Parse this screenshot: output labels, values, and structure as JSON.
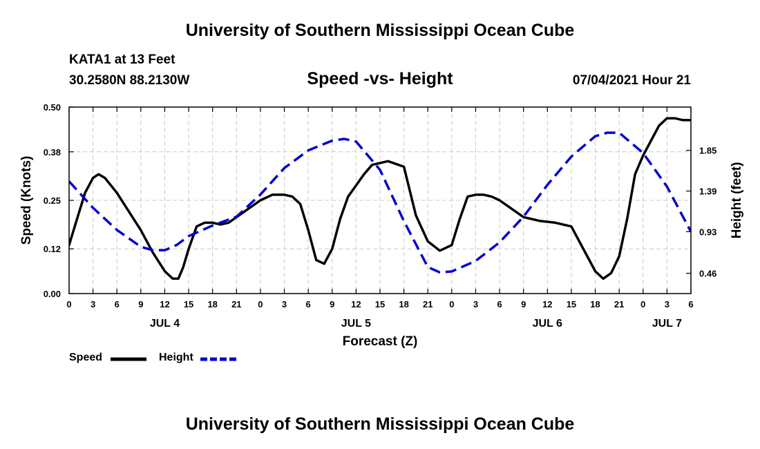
{
  "header": {
    "title_top": "University of Southern Mississippi Ocean Cube",
    "title_bottom": "University of Southern Mississippi Ocean Cube",
    "station": "KATA1 at 13 Feet",
    "coords": "30.2580N  88.2130W",
    "chart_title": "Speed -vs- Height",
    "datetime": "07/04/2021 Hour 21"
  },
  "legend": {
    "speed": "Speed",
    "height": "Height"
  },
  "chart_data": {
    "type": "line",
    "title": "Speed -vs- Height",
    "xlabel": "Forecast (Z)",
    "ylabel": "Speed (Knots)",
    "y2label": "Height (feet)",
    "xlim": [
      0,
      78
    ],
    "ylim": [
      0,
      0.5
    ],
    "y2lim": [
      0.23,
      2.34
    ],
    "grid": true,
    "legend_position": "bottom-left",
    "x_ticks": [
      0,
      3,
      6,
      9,
      12,
      15,
      18,
      21,
      24,
      27,
      30,
      33,
      36,
      39,
      42,
      45,
      48,
      51,
      54,
      57,
      60,
      63,
      66,
      69,
      72,
      75,
      78
    ],
    "x_tick_labels": [
      "0",
      "3",
      "6",
      "9",
      "12",
      "15",
      "18",
      "21",
      "0",
      "3",
      "6",
      "9",
      "12",
      "15",
      "18",
      "21",
      "0",
      "3",
      "6",
      "9",
      "12",
      "15",
      "18",
      "21",
      "0",
      "3",
      "6"
    ],
    "day_labels": [
      {
        "x": 12,
        "label": "JUL 4"
      },
      {
        "x": 36,
        "label": "JUL 5"
      },
      {
        "x": 60,
        "label": "JUL 6"
      },
      {
        "x": 75,
        "label": "JUL 7"
      }
    ],
    "y_ticks": [
      0.0,
      0.12,
      0.25,
      0.38,
      0.5
    ],
    "y_tick_labels": [
      "0.00",
      "0.12",
      "0.25",
      "0.38",
      "0.50"
    ],
    "y2_ticks": [
      0.46,
      0.93,
      1.39,
      1.85
    ],
    "y2_tick_labels": [
      "0.46",
      "0.93",
      "1.39",
      "1.85"
    ],
    "series": [
      {
        "name": "Speed",
        "axis": "left",
        "color": "#000000",
        "dash": "solid",
        "x": [
          0,
          1,
          2,
          3,
          3.7,
          4.5,
          6,
          7.5,
          9,
          10.5,
          12,
          13,
          13.7,
          14.3,
          15,
          16,
          17,
          18,
          19,
          20,
          21,
          22,
          24,
          25.5,
          27,
          28,
          29,
          30,
          31,
          32,
          33,
          34,
          35,
          36,
          37,
          38,
          40,
          42,
          43.5,
          45,
          46.5,
          48,
          49,
          50,
          51,
          52,
          53,
          54,
          55,
          56,
          57,
          59,
          61,
          63,
          65,
          66,
          67,
          68,
          69,
          70,
          71,
          72,
          73,
          74,
          75,
          76,
          77,
          78
        ],
        "y": [
          0.13,
          0.2,
          0.27,
          0.31,
          0.32,
          0.31,
          0.27,
          0.22,
          0.17,
          0.11,
          0.06,
          0.04,
          0.04,
          0.07,
          0.12,
          0.18,
          0.19,
          0.19,
          0.185,
          0.19,
          0.205,
          0.22,
          0.25,
          0.265,
          0.265,
          0.26,
          0.24,
          0.17,
          0.09,
          0.08,
          0.12,
          0.2,
          0.26,
          0.29,
          0.32,
          0.345,
          0.355,
          0.34,
          0.21,
          0.14,
          0.115,
          0.13,
          0.2,
          0.26,
          0.265,
          0.265,
          0.26,
          0.25,
          0.235,
          0.22,
          0.205,
          0.195,
          0.19,
          0.18,
          0.1,
          0.06,
          0.04,
          0.055,
          0.1,
          0.2,
          0.32,
          0.37,
          0.41,
          0.45,
          0.47,
          0.47,
          0.465,
          0.465
        ]
      },
      {
        "name": "Height",
        "axis": "right",
        "color": "#0000cc",
        "dash": "dashed",
        "x": [
          0,
          3,
          6,
          9,
          10.5,
          12,
          13.5,
          15,
          18,
          21,
          24,
          27,
          30,
          33,
          34.5,
          36,
          39,
          42,
          45,
          46.5,
          48,
          49.5,
          51,
          54,
          57,
          60,
          63,
          66,
          67.5,
          69,
          72,
          75,
          78
        ],
        "y": [
          1.5,
          1.2,
          0.95,
          0.76,
          0.72,
          0.72,
          0.78,
          0.88,
          1.0,
          1.1,
          1.35,
          1.65,
          1.85,
          1.96,
          1.98,
          1.95,
          1.63,
          1.05,
          0.53,
          0.47,
          0.48,
          0.54,
          0.6,
          0.81,
          1.1,
          1.46,
          1.78,
          2.01,
          2.05,
          2.05,
          1.82,
          1.44,
          0.93
        ]
      }
    ]
  }
}
